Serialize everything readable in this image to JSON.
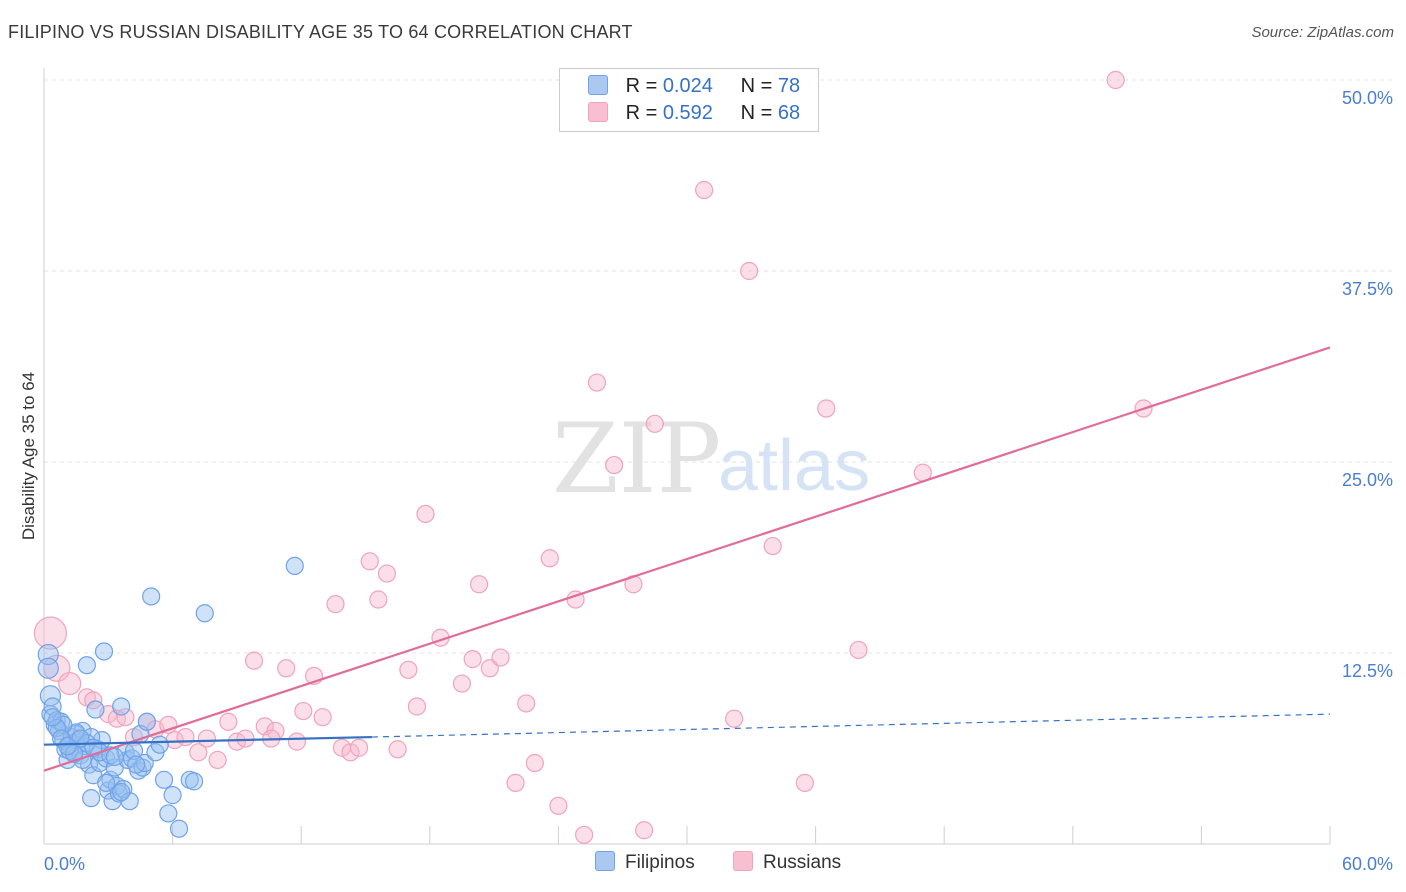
{
  "title": "FILIPINO VS RUSSIAN DISABILITY AGE 35 TO 64 CORRELATION CHART",
  "source": "Source: ZipAtlas.com",
  "watermark": {
    "part1": "ZIP",
    "part2": "atlas"
  },
  "legend": {
    "rows": [
      {
        "r_label": "R =",
        "r_value": "0.024",
        "n_label": "N =",
        "n_value": "78",
        "color": "#aac8f0"
      },
      {
        "r_label": "R =",
        "r_value": "0.592",
        "n_label": "N =",
        "n_value": "68",
        "color": "#f7bfd0"
      }
    ]
  },
  "bottom_legend": {
    "filipinos": "Filipinos",
    "russians": "Russians"
  },
  "chart_data": {
    "type": "scatter",
    "title": "FILIPINO VS RUSSIAN DISABILITY AGE 35 TO 64 CORRELATION CHART",
    "xlabel": "",
    "ylabel": "Disability Age 35 to 64",
    "xlim": [
      0,
      60
    ],
    "ylim": [
      0,
      50
    ],
    "x_tick_labels": [
      "0.0%",
      "60.0%"
    ],
    "y_ticks": [
      12.5,
      25.0,
      37.5,
      50.0
    ],
    "y_tick_labels": [
      "12.5%",
      "25.0%",
      "37.5%",
      "50.0%"
    ],
    "grid": "horizontal dashed",
    "colors": {
      "filipinos": "#6fa3e8",
      "filipinos_line": "#3572c6",
      "russians": "#f0a3bc",
      "russians_line": "#e06d97"
    },
    "series": [
      {
        "name": "Filipinos",
        "r": 0.024,
        "n": 78,
        "trend": {
          "x0": 0,
          "y0": 6.5,
          "x_solid_end": 15.3,
          "y_solid_end": 7.0,
          "x1": 60,
          "y1": 8.5
        },
        "points": [
          [
            0.2,
            12.4
          ],
          [
            0.2,
            11.5
          ],
          [
            0.3,
            9.7
          ],
          [
            0.3,
            8.5
          ],
          [
            0.4,
            9.0
          ],
          [
            0.5,
            7.8
          ],
          [
            0.6,
            8.1
          ],
          [
            0.7,
            7.4
          ],
          [
            0.8,
            8.0
          ],
          [
            0.9,
            6.8
          ],
          [
            1.0,
            6.2
          ],
          [
            1.1,
            5.5
          ],
          [
            1.2,
            6.5
          ],
          [
            1.3,
            7.0
          ],
          [
            1.4,
            6.0
          ],
          [
            1.5,
            7.2
          ],
          [
            1.6,
            6.8
          ],
          [
            1.7,
            5.8
          ],
          [
            1.8,
            7.4
          ],
          [
            1.9,
            6.4
          ],
          [
            2.0,
            11.7
          ],
          [
            2.1,
            5.2
          ],
          [
            2.2,
            3.0
          ],
          [
            2.3,
            4.5
          ],
          [
            2.4,
            8.8
          ],
          [
            2.5,
            6.2
          ],
          [
            2.6,
            5.3
          ],
          [
            2.7,
            6.8
          ],
          [
            2.8,
            12.6
          ],
          [
            2.9,
            5.6
          ],
          [
            3.0,
            3.5
          ],
          [
            3.1,
            4.2
          ],
          [
            3.2,
            2.8
          ],
          [
            3.3,
            5.0
          ],
          [
            3.4,
            3.8
          ],
          [
            3.5,
            3.3
          ],
          [
            3.6,
            9.0
          ],
          [
            3.7,
            3.6
          ],
          [
            3.8,
            6.0
          ],
          [
            3.9,
            5.5
          ],
          [
            4.0,
            2.8
          ],
          [
            4.1,
            5.6
          ],
          [
            4.2,
            6.1
          ],
          [
            4.4,
            4.8
          ],
          [
            4.5,
            7.2
          ],
          [
            4.6,
            5.0
          ],
          [
            4.7,
            5.3
          ],
          [
            4.8,
            8.0
          ],
          [
            5.0,
            16.2
          ],
          [
            5.2,
            6.0
          ],
          [
            5.4,
            6.5
          ],
          [
            5.6,
            4.2
          ],
          [
            5.8,
            2.0
          ],
          [
            6.0,
            3.2
          ],
          [
            6.3,
            1.0
          ],
          [
            6.8,
            4.2
          ],
          [
            7.0,
            4.1
          ],
          [
            7.5,
            15.1
          ],
          [
            11.7,
            18.2
          ],
          [
            1.5,
            7.3
          ],
          [
            0.9,
            7.8
          ],
          [
            1.2,
            6.1
          ],
          [
            2.2,
            7.0
          ],
          [
            1.8,
            5.5
          ],
          [
            2.6,
            6.0
          ],
          [
            3.1,
            5.8
          ],
          [
            0.6,
            7.6
          ],
          [
            1.4,
            5.9
          ],
          [
            2.0,
            6.6
          ],
          [
            0.4,
            8.3
          ],
          [
            1.7,
            6.9
          ],
          [
            2.9,
            4.0
          ],
          [
            3.6,
            3.4
          ],
          [
            4.3,
            5.2
          ],
          [
            0.8,
            6.9
          ],
          [
            1.1,
            6.4
          ],
          [
            2.3,
            6.3
          ],
          [
            3.3,
            5.7
          ]
        ]
      },
      {
        "name": "Russians",
        "r": 0.592,
        "n": 68,
        "trend": {
          "x0": 0,
          "y0": 4.8,
          "x1": 60,
          "y1": 32.5
        },
        "points": [
          [
            0.3,
            13.8
          ],
          [
            0.6,
            11.5
          ],
          [
            1.2,
            10.5
          ],
          [
            2.0,
            9.6
          ],
          [
            2.3,
            9.4
          ],
          [
            3.0,
            8.5
          ],
          [
            3.4,
            8.2
          ],
          [
            3.8,
            8.3
          ],
          [
            4.2,
            7.0
          ],
          [
            4.8,
            8.0
          ],
          [
            5.2,
            7.5
          ],
          [
            5.8,
            7.8
          ],
          [
            6.1,
            6.8
          ],
          [
            6.6,
            7.0
          ],
          [
            7.2,
            6.0
          ],
          [
            7.6,
            6.9
          ],
          [
            8.1,
            5.5
          ],
          [
            8.6,
            8.0
          ],
          [
            9.0,
            6.7
          ],
          [
            9.4,
            6.9
          ],
          [
            9.8,
            12.0
          ],
          [
            10.3,
            7.7
          ],
          [
            10.8,
            7.4
          ],
          [
            11.3,
            11.5
          ],
          [
            11.8,
            6.7
          ],
          [
            12.1,
            8.7
          ],
          [
            12.6,
            11.0
          ],
          [
            13.0,
            8.3
          ],
          [
            13.6,
            15.7
          ],
          [
            13.9,
            6.3
          ],
          [
            14.3,
            6.0
          ],
          [
            14.7,
            6.3
          ],
          [
            15.2,
            18.5
          ],
          [
            15.6,
            16.0
          ],
          [
            16.0,
            17.7
          ],
          [
            16.5,
            6.2
          ],
          [
            17.0,
            11.4
          ],
          [
            17.4,
            9.0
          ],
          [
            17.8,
            21.6
          ],
          [
            18.5,
            13.5
          ],
          [
            19.5,
            10.5
          ],
          [
            20.0,
            12.1
          ],
          [
            20.3,
            17.0
          ],
          [
            20.8,
            11.5
          ],
          [
            21.3,
            12.2
          ],
          [
            22.0,
            4.0
          ],
          [
            22.5,
            9.2
          ],
          [
            22.9,
            5.3
          ],
          [
            23.6,
            18.7
          ],
          [
            24.0,
            2.5
          ],
          [
            24.8,
            16.0
          ],
          [
            25.2,
            0.6
          ],
          [
            25.8,
            30.2
          ],
          [
            26.6,
            24.8
          ],
          [
            27.5,
            17.0
          ],
          [
            28.0,
            0.9
          ],
          [
            28.5,
            27.5
          ],
          [
            30.8,
            42.8
          ],
          [
            32.2,
            8.2
          ],
          [
            32.9,
            37.5
          ],
          [
            34.0,
            19.5
          ],
          [
            35.5,
            4.0
          ],
          [
            36.5,
            28.5
          ],
          [
            38.0,
            12.7
          ],
          [
            41.0,
            24.3
          ],
          [
            50.0,
            50.0
          ],
          [
            51.3,
            28.5
          ],
          [
            10.6,
            6.9
          ]
        ]
      }
    ]
  }
}
